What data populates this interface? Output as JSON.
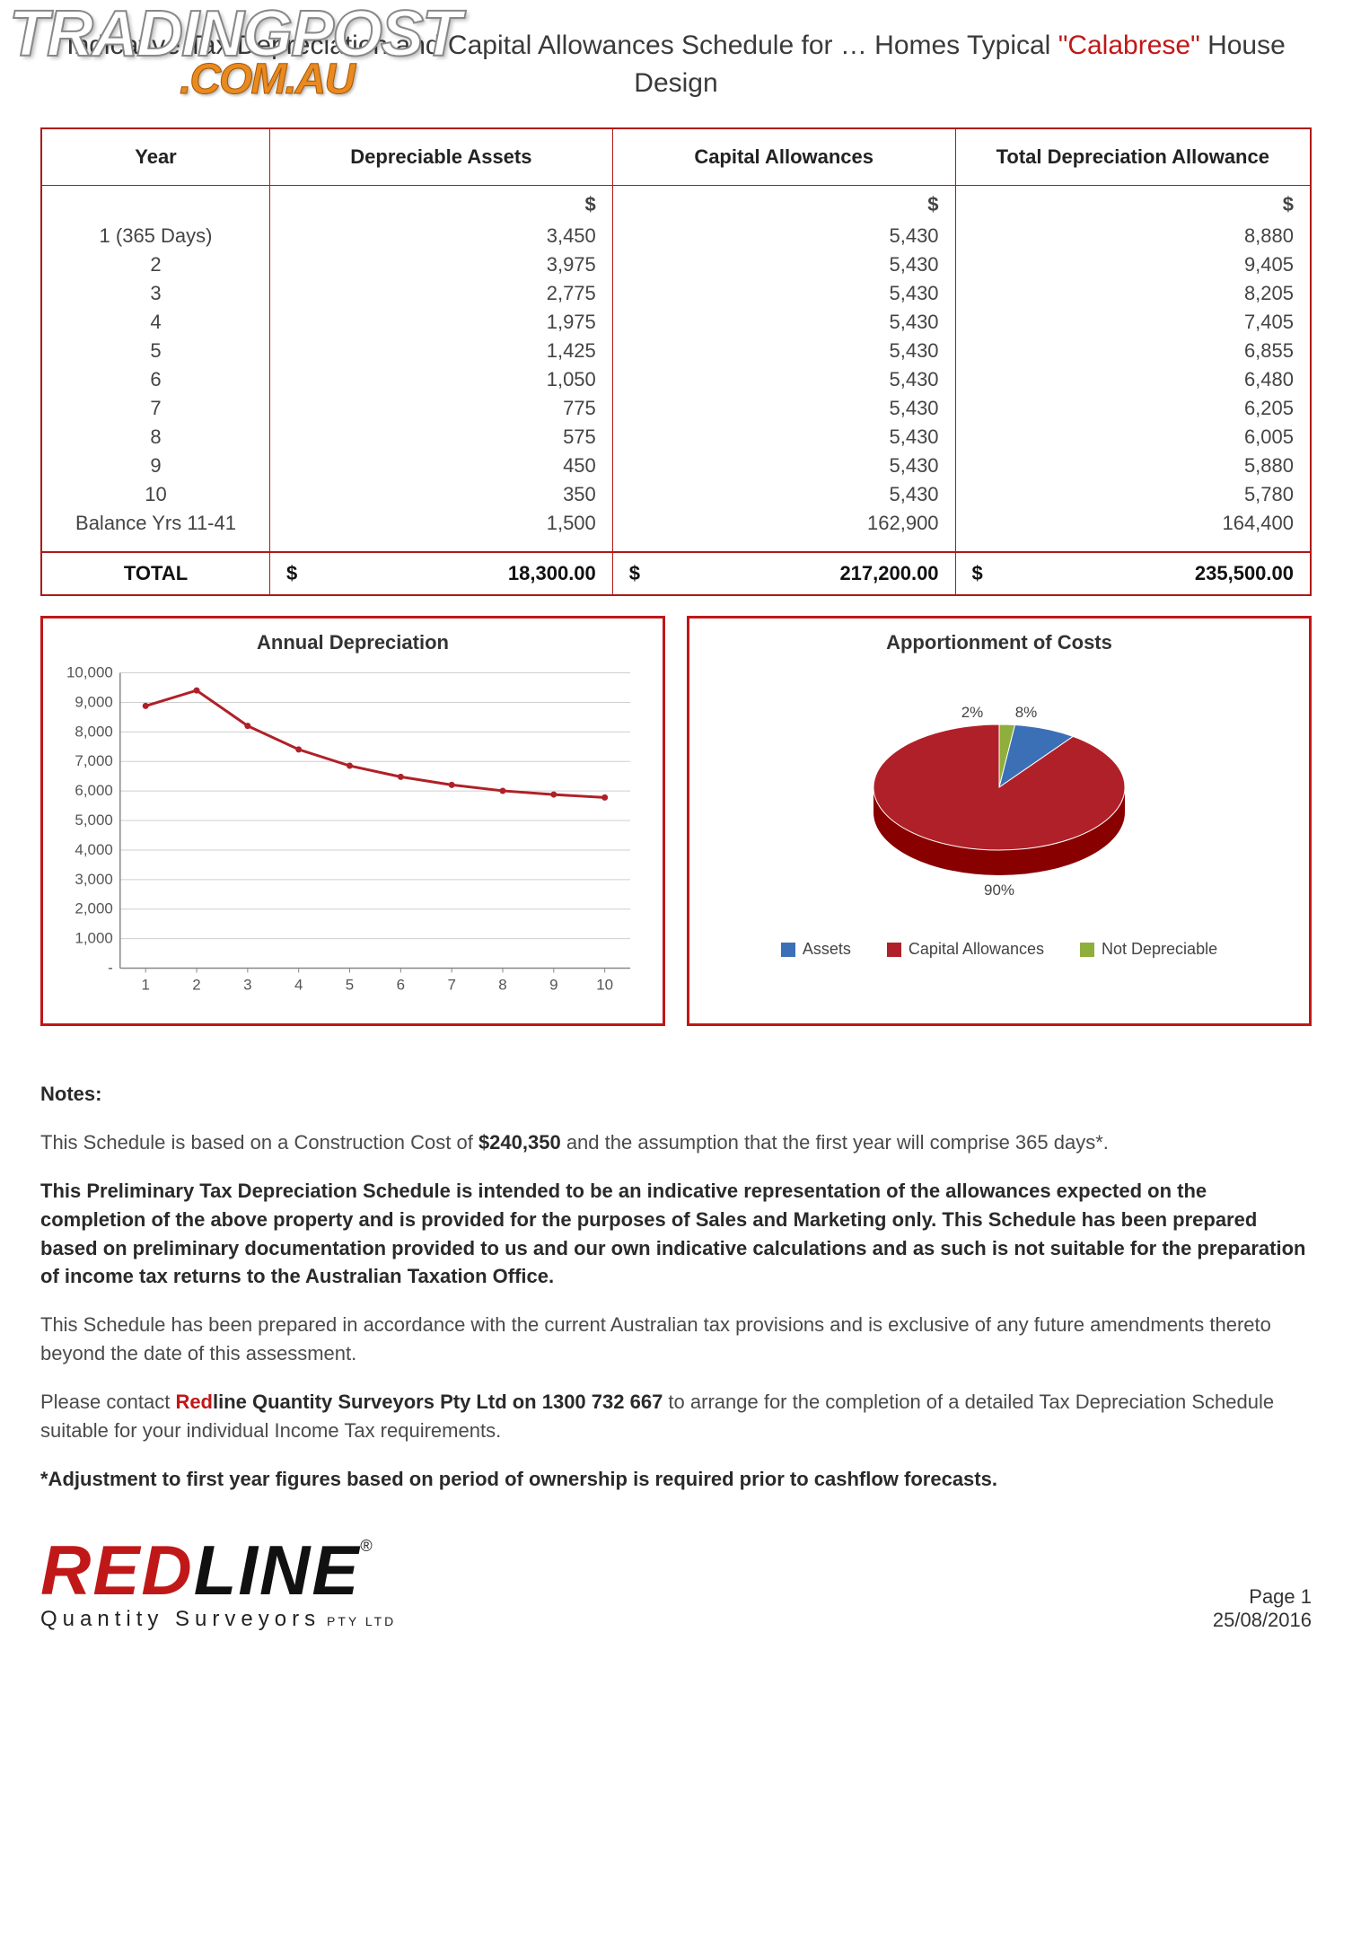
{
  "watermark": {
    "line1": "TRADINGPOST",
    "line2": ".COM.AU"
  },
  "title": {
    "prefix": "Indicative Tax Depreciation and Capital Allowances Schedule for\n… Homes Typical ",
    "highlight": "\"Calabrese\"",
    "suffix": " House Design"
  },
  "table": {
    "headers": [
      "Year",
      "Depreciable Assets",
      "Capital Allowances",
      "Total Depreciation Allowance"
    ],
    "currency_symbol": "$",
    "rows": [
      {
        "year": "1 (365 Days)",
        "assets": "3,450",
        "capital": "5,430",
        "total": "8,880"
      },
      {
        "year": "2",
        "assets": "3,975",
        "capital": "5,430",
        "total": "9,405"
      },
      {
        "year": "3",
        "assets": "2,775",
        "capital": "5,430",
        "total": "8,205"
      },
      {
        "year": "4",
        "assets": "1,975",
        "capital": "5,430",
        "total": "7,405"
      },
      {
        "year": "5",
        "assets": "1,425",
        "capital": "5,430",
        "total": "6,855"
      },
      {
        "year": "6",
        "assets": "1,050",
        "capital": "5,430",
        "total": "6,480"
      },
      {
        "year": "7",
        "assets": "775",
        "capital": "5,430",
        "total": "6,205"
      },
      {
        "year": "8",
        "assets": "575",
        "capital": "5,430",
        "total": "6,005"
      },
      {
        "year": "9",
        "assets": "450",
        "capital": "5,430",
        "total": "5,880"
      },
      {
        "year": "10",
        "assets": "350",
        "capital": "5,430",
        "total": "5,780"
      },
      {
        "year": "Balance Yrs 11-41",
        "assets": "1,500",
        "capital": "162,900",
        "total": "164,400"
      }
    ],
    "total_label": "TOTAL",
    "totals": {
      "assets": "18,300.00",
      "capital": "217,200.00",
      "total": "235,500.00"
    }
  },
  "line_chart": {
    "type": "line",
    "title": "Annual Depreciation",
    "x_labels": [
      "1",
      "2",
      "3",
      "4",
      "5",
      "6",
      "7",
      "8",
      "9",
      "10"
    ],
    "y_ticks": [
      "-",
      "1,000",
      "2,000",
      "3,000",
      "4,000",
      "5,000",
      "6,000",
      "7,000",
      "8,000",
      "9,000",
      "10,000"
    ],
    "ylim": [
      0,
      10000
    ],
    "values": [
      8880,
      9405,
      8205,
      7405,
      6855,
      6480,
      6205,
      6005,
      5880,
      5780
    ],
    "line_color": "#b02028",
    "line_width": 3,
    "grid_color": "#cfcfcf",
    "axis_color": "#888888",
    "tick_font_size": 17,
    "title_fontsize": 22,
    "background_color": "#ffffff"
  },
  "pie_chart": {
    "type": "pie",
    "title": "Apportionment of Costs",
    "slices": [
      {
        "label": "Assets",
        "pct": 8,
        "color": "#3b6fb6",
        "display": "8%"
      },
      {
        "label": "Capital Allowances",
        "pct": 90,
        "color": "#b02028",
        "display": "90%"
      },
      {
        "label": "Not Depreciable",
        "pct": 2,
        "color": "#8faf3c",
        "display": "2%"
      }
    ],
    "title_fontsize": 22,
    "label_fontsize": 17,
    "background_color": "#ffffff"
  },
  "notes": {
    "heading": "Notes:",
    "p1_a": "This Schedule is based on a Construction Cost of ",
    "p1_bold": "$240,350",
    "p1_b": " and the assumption that the first year will comprise 365 days*.",
    "p2": "This Preliminary Tax Depreciation Schedule is intended to be an indicative representation of the allowances expected on the completion of the above property and is provided for the purposes of Sales and Marketing only.  This Schedule has been prepared based on preliminary documentation provided to us and our own indicative calculations and as such is not suitable for the preparation of income tax returns to the Australian Taxation Office.",
    "p3": "This Schedule has been prepared in accordance with the current Australian tax provisions and is exclusive of any future amendments thereto beyond the date of this assessment.",
    "p4_a": "Please contact ",
    "p4_red": "Red",
    "p4_bold": "line Quantity Surveyors Pty Ltd on 1300 732 667",
    "p4_b": " to arrange for the completion of a detailed Tax Depreciation Schedule suitable for your individual Income Tax requirements.",
    "p5": "*Adjustment to first year figures based on period of ownership is required prior to cashflow forecasts."
  },
  "footer": {
    "brand_red": "RED",
    "brand_black": "LINE",
    "sub": "Quantity Surveyors",
    "pty": " PTY LTD",
    "page": "Page 1",
    "date": "25/08/2016"
  }
}
